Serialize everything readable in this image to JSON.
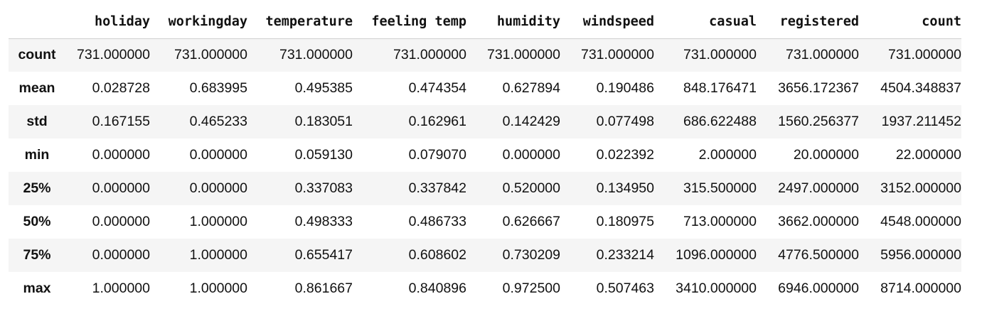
{
  "table": {
    "columns": [
      "",
      "holiday",
      "workingday",
      "temperature",
      "feeling temp",
      "humidity",
      "windspeed",
      "casual",
      "registered",
      "count"
    ],
    "rows": [
      {
        "label": "count",
        "cells": [
          "731.000000",
          "731.000000",
          "731.000000",
          "731.000000",
          "731.000000",
          "731.000000",
          "731.000000",
          "731.000000",
          "731.000000"
        ]
      },
      {
        "label": "mean",
        "cells": [
          "0.028728",
          "0.683995",
          "0.495385",
          "0.474354",
          "0.627894",
          "0.190486",
          "848.176471",
          "3656.172367",
          "4504.348837"
        ]
      },
      {
        "label": "std",
        "cells": [
          "0.167155",
          "0.465233",
          "0.183051",
          "0.162961",
          "0.142429",
          "0.077498",
          "686.622488",
          "1560.256377",
          "1937.211452"
        ]
      },
      {
        "label": "min",
        "cells": [
          "0.000000",
          "0.000000",
          "0.059130",
          "0.079070",
          "0.000000",
          "0.022392",
          "2.000000",
          "20.000000",
          "22.000000"
        ]
      },
      {
        "label": "25%",
        "cells": [
          "0.000000",
          "0.000000",
          "0.337083",
          "0.337842",
          "0.520000",
          "0.134950",
          "315.500000",
          "2497.000000",
          "3152.000000"
        ]
      },
      {
        "label": "50%",
        "cells": [
          "0.000000",
          "1.000000",
          "0.498333",
          "0.486733",
          "0.626667",
          "0.180975",
          "713.000000",
          "3662.000000",
          "4548.000000"
        ]
      },
      {
        "label": "75%",
        "cells": [
          "0.000000",
          "1.000000",
          "0.655417",
          "0.608602",
          "0.730209",
          "0.233214",
          "1096.000000",
          "4776.500000",
          "5956.000000"
        ]
      },
      {
        "label": "max",
        "cells": [
          "1.000000",
          "1.000000",
          "0.861667",
          "0.840896",
          "0.972500",
          "0.507463",
          "3410.000000",
          "6946.000000",
          "8714.000000"
        ]
      }
    ]
  }
}
